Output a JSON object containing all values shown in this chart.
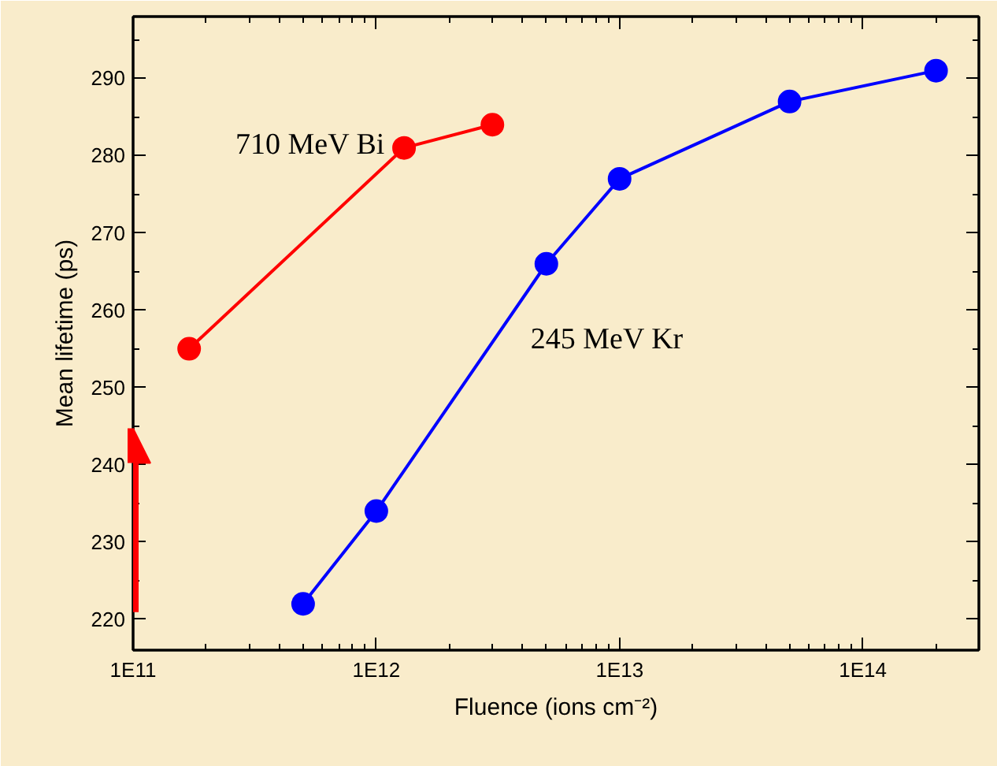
{
  "chart_data": {
    "type": "line",
    "xlabel": "Fluence (ions cm⁻²)",
    "ylabel": "Mean lifetime (ps)",
    "log": "x",
    "marker": "circle",
    "line_style": "solid",
    "grid": false,
    "xlim": [
      100000000000.0,
      300000000000000.0
    ],
    "ylim": [
      216,
      298
    ],
    "xticks": [
      {
        "value": 100000000000.0,
        "label": "1E11"
      },
      {
        "value": 1000000000000.0,
        "label": "1E12"
      },
      {
        "value": 10000000000000.0,
        "label": "1E13"
      },
      {
        "value": 100000000000000.0,
        "label": "1E14"
      }
    ],
    "yticks": [
      220,
      230,
      240,
      250,
      260,
      270,
      280,
      290
    ],
    "series": [
      {
        "name": "710 MeV Bi",
        "color": "#ff0000",
        "x": [
          170000000000.0,
          1300000000000.0,
          3000000000000.0
        ],
        "values": [
          255,
          281,
          284
        ]
      },
      {
        "name": "245 MeV Kr",
        "color": "#0000ff",
        "x": [
          500000000000.0,
          1000000000000.0,
          5000000000000.0,
          10000000000000.0,
          50000000000000.0,
          200000000000000.0
        ],
        "values": [
          222,
          234,
          266,
          277,
          287,
          291
        ]
      }
    ]
  }
}
